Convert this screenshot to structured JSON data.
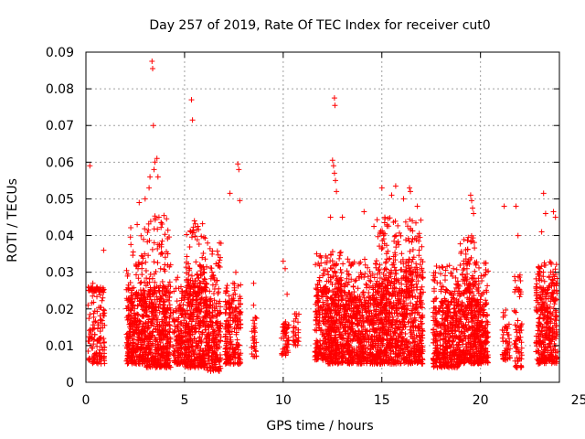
{
  "chart_data": {
    "type": "scatter",
    "title": "Day 257 of 2019, Rate Of TEC Index for receiver cut0",
    "xlabel": "GPS time / hours",
    "ylabel": "ROTI / TECUs",
    "xlim": [
      0,
      24
    ],
    "ylim": [
      0,
      0.09
    ],
    "grid": true,
    "marker": "+",
    "colors": {
      "points": "#ff0000",
      "grid": "#a0a0a0",
      "axes": "#000000"
    },
    "x_ticks": [
      0,
      5,
      10,
      15,
      20,
      25
    ],
    "x_tick_labels": [
      "0",
      "5",
      "10",
      "15",
      "20",
      "25"
    ],
    "y_ticks": [
      0,
      0.01,
      0.02,
      0.03,
      0.04,
      0.05,
      0.06,
      0.07,
      0.08,
      0.09
    ],
    "y_tick_labels": [
      "0",
      "0.01",
      "0.02",
      "0.03",
      "0.04",
      "0.05",
      "0.06",
      "0.07",
      "0.08",
      "0.09"
    ],
    "clusters": [
      {
        "x": [
          0.1,
          0.95
        ],
        "y": [
          0.005,
          0.025
        ],
        "n": 160,
        "max_y": 0.026
      },
      {
        "x": [
          2.05,
          3.05
        ],
        "y": [
          0.005,
          0.025
        ],
        "n": 360,
        "max_y": 0.043
      },
      {
        "x": [
          3.05,
          4.3
        ],
        "y": [
          0.004,
          0.025
        ],
        "n": 460,
        "max_y": 0.046
      },
      {
        "x": [
          4.4,
          5.05
        ],
        "y": [
          0.005,
          0.02
        ],
        "n": 160,
        "max_y": 0.029
      },
      {
        "x": [
          5.05,
          6.1
        ],
        "y": [
          0.004,
          0.027
        ],
        "n": 420,
        "max_y": 0.044
      },
      {
        "x": [
          6.1,
          6.85
        ],
        "y": [
          0.003,
          0.022
        ],
        "n": 240,
        "max_y": 0.038
      },
      {
        "x": [
          7.05,
          7.85
        ],
        "y": [
          0.005,
          0.022
        ],
        "n": 200,
        "max_y": 0.027
      },
      {
        "x": [
          8.4,
          8.65
        ],
        "y": [
          0.007,
          0.017
        ],
        "n": 30,
        "max_y": 0.022
      },
      {
        "x": [
          9.9,
          10.3
        ],
        "y": [
          0.007,
          0.016
        ],
        "n": 50,
        "max_y": 0.02
      },
      {
        "x": [
          10.5,
          10.8
        ],
        "y": [
          0.01,
          0.017
        ],
        "n": 30,
        "max_y": 0.019
      },
      {
        "x": [
          11.6,
          12.2
        ],
        "y": [
          0.006,
          0.025
        ],
        "n": 180,
        "max_y": 0.035
      },
      {
        "x": [
          12.2,
          13.3
        ],
        "y": [
          0.005,
          0.025
        ],
        "n": 420,
        "max_y": 0.036
      },
      {
        "x": [
          13.3,
          14.7
        ],
        "y": [
          0.005,
          0.023
        ],
        "n": 460,
        "max_y": 0.034
      },
      {
        "x": [
          14.7,
          15.8
        ],
        "y": [
          0.005,
          0.028
        ],
        "n": 460,
        "max_y": 0.045
      },
      {
        "x": [
          15.8,
          17.1
        ],
        "y": [
          0.005,
          0.03
        ],
        "n": 460,
        "max_y": 0.045
      },
      {
        "x": [
          17.6,
          18.9
        ],
        "y": [
          0.004,
          0.022
        ],
        "n": 420,
        "max_y": 0.032
      },
      {
        "x": [
          18.9,
          19.7
        ],
        "y": [
          0.005,
          0.025
        ],
        "n": 300,
        "max_y": 0.04
      },
      {
        "x": [
          19.7,
          20.4
        ],
        "y": [
          0.005,
          0.022
        ],
        "n": 260,
        "max_y": 0.033
      },
      {
        "x": [
          21.1,
          21.5
        ],
        "y": [
          0.006,
          0.015
        ],
        "n": 50,
        "max_y": 0.02
      },
      {
        "x": [
          21.7,
          22.1
        ],
        "y": [
          0.004,
          0.025
        ],
        "n": 70,
        "max_y": 0.03
      },
      {
        "x": [
          22.8,
          23.9
        ],
        "y": [
          0.005,
          0.025
        ],
        "n": 360,
        "max_y": 0.033
      }
    ],
    "outliers": [
      {
        "x": 0.2,
        "y": 0.059
      },
      {
        "x": 0.35,
        "y": 0.027
      },
      {
        "x": 0.9,
        "y": 0.036
      },
      {
        "x": 2.6,
        "y": 0.043
      },
      {
        "x": 2.7,
        "y": 0.049
      },
      {
        "x": 3.0,
        "y": 0.05
      },
      {
        "x": 3.2,
        "y": 0.053
      },
      {
        "x": 3.25,
        "y": 0.056
      },
      {
        "x": 3.35,
        "y": 0.0875
      },
      {
        "x": 3.38,
        "y": 0.0855
      },
      {
        "x": 3.42,
        "y": 0.07
      },
      {
        "x": 3.45,
        "y": 0.058
      },
      {
        "x": 3.5,
        "y": 0.06
      },
      {
        "x": 3.6,
        "y": 0.061
      },
      {
        "x": 3.65,
        "y": 0.056
      },
      {
        "x": 3.7,
        "y": 0.045
      },
      {
        "x": 5.35,
        "y": 0.077
      },
      {
        "x": 5.4,
        "y": 0.0715
      },
      {
        "x": 5.5,
        "y": 0.044
      },
      {
        "x": 7.3,
        "y": 0.0515
      },
      {
        "x": 7.7,
        "y": 0.0595
      },
      {
        "x": 7.75,
        "y": 0.058
      },
      {
        "x": 7.8,
        "y": 0.0495
      },
      {
        "x": 7.6,
        "y": 0.03
      },
      {
        "x": 8.5,
        "y": 0.027
      },
      {
        "x": 10.0,
        "y": 0.033
      },
      {
        "x": 10.1,
        "y": 0.031
      },
      {
        "x": 10.2,
        "y": 0.024
      },
      {
        "x": 11.7,
        "y": 0.035
      },
      {
        "x": 12.4,
        "y": 0.045
      },
      {
        "x": 12.5,
        "y": 0.0605
      },
      {
        "x": 12.55,
        "y": 0.059
      },
      {
        "x": 12.6,
        "y": 0.057
      },
      {
        "x": 12.6,
        "y": 0.0775
      },
      {
        "x": 12.62,
        "y": 0.0755
      },
      {
        "x": 12.65,
        "y": 0.055
      },
      {
        "x": 12.7,
        "y": 0.052
      },
      {
        "x": 13.0,
        "y": 0.045
      },
      {
        "x": 14.1,
        "y": 0.0465
      },
      {
        "x": 14.6,
        "y": 0.0425
      },
      {
        "x": 15.0,
        "y": 0.053
      },
      {
        "x": 15.5,
        "y": 0.051
      },
      {
        "x": 15.7,
        "y": 0.0535
      },
      {
        "x": 16.1,
        "y": 0.05
      },
      {
        "x": 16.4,
        "y": 0.053
      },
      {
        "x": 16.45,
        "y": 0.052
      },
      {
        "x": 16.8,
        "y": 0.048
      },
      {
        "x": 19.5,
        "y": 0.051
      },
      {
        "x": 19.55,
        "y": 0.0495
      },
      {
        "x": 19.6,
        "y": 0.0475
      },
      {
        "x": 19.65,
        "y": 0.046
      },
      {
        "x": 21.2,
        "y": 0.048
      },
      {
        "x": 21.8,
        "y": 0.048
      },
      {
        "x": 21.9,
        "y": 0.04
      },
      {
        "x": 23.2,
        "y": 0.0515
      },
      {
        "x": 23.3,
        "y": 0.046
      },
      {
        "x": 23.7,
        "y": 0.0465
      },
      {
        "x": 23.8,
        "y": 0.045
      },
      {
        "x": 23.1,
        "y": 0.041
      }
    ]
  }
}
